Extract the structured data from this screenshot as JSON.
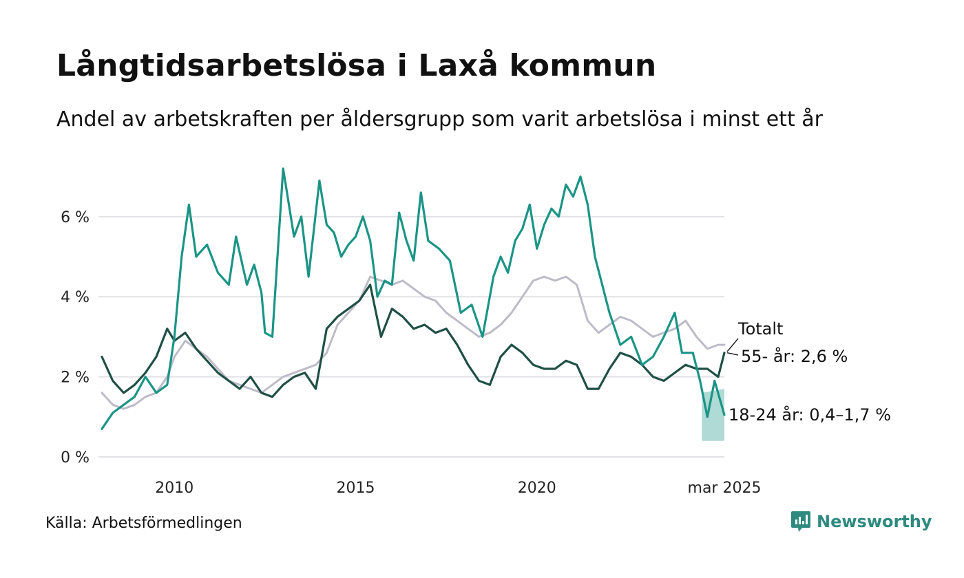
{
  "title": "Långtidsarbetslösa i Laxå kommun",
  "subtitle": "Andel av arbetskraften per åldersgrupp som varit arbetslösa i minst ett år",
  "source": "Källa: Arbetsförmedlingen",
  "brand": {
    "name": "Newsworthy",
    "icon": "newsworthy-logo-icon",
    "color": "#2e8a7f"
  },
  "chart_data": {
    "type": "line",
    "x_ticks": [
      {
        "x": 2010,
        "label": "2010"
      },
      {
        "x": 2015,
        "label": "2015"
      },
      {
        "x": 2020,
        "label": "2020"
      },
      {
        "x": 2025.17,
        "label": "mar 2025"
      }
    ],
    "y_ticks": [
      {
        "y": 0,
        "label": "0 %"
      },
      {
        "y": 2,
        "label": "2 %"
      },
      {
        "y": 4,
        "label": "4 %"
      },
      {
        "y": 6,
        "label": "6 %"
      }
    ],
    "xlim": [
      2008.0,
      2025.17
    ],
    "ylim": [
      0,
      7.2
    ],
    "grid": "horizontal",
    "series": [
      {
        "key": "total",
        "label": "Totalt",
        "color": "#bdbbc8",
        "x": [
          2008.0,
          2008.3,
          2008.6,
          2008.9,
          2009.2,
          2009.5,
          2009.8,
          2010.0,
          2010.3,
          2010.6,
          2010.9,
          2011.2,
          2011.5,
          2011.8,
          2012.1,
          2012.4,
          2012.7,
          2013.0,
          2013.3,
          2013.6,
          2013.9,
          2014.2,
          2014.5,
          2014.8,
          2015.1,
          2015.4,
          2015.7,
          2016.0,
          2016.3,
          2016.6,
          2016.9,
          2017.2,
          2017.5,
          2017.8,
          2018.1,
          2018.4,
          2018.7,
          2019.0,
          2019.3,
          2019.6,
          2019.9,
          2020.2,
          2020.5,
          2020.8,
          2021.1,
          2021.4,
          2021.7,
          2022.0,
          2022.3,
          2022.6,
          2022.9,
          2023.2,
          2023.5,
          2023.8,
          2024.1,
          2024.4,
          2024.7,
          2025.0,
          2025.17
        ],
        "values": [
          1.6,
          1.3,
          1.2,
          1.3,
          1.5,
          1.6,
          2.0,
          2.5,
          2.9,
          2.7,
          2.5,
          2.2,
          1.9,
          1.8,
          1.7,
          1.6,
          1.8,
          2.0,
          2.1,
          2.2,
          2.3,
          2.6,
          3.3,
          3.6,
          3.9,
          4.5,
          4.4,
          4.3,
          4.4,
          4.2,
          4.0,
          3.9,
          3.6,
          3.4,
          3.2,
          3.0,
          3.1,
          3.3,
          3.6,
          4.0,
          4.4,
          4.5,
          4.4,
          4.5,
          4.3,
          3.4,
          3.1,
          3.3,
          3.5,
          3.4,
          3.2,
          3.0,
          3.1,
          3.2,
          3.4,
          3.0,
          2.7,
          2.8,
          2.8
        ]
      },
      {
        "key": "age55",
        "label": "55- år: 2,6 %",
        "color": "#1f4f45",
        "x": [
          2008.0,
          2008.3,
          2008.6,
          2008.9,
          2009.2,
          2009.5,
          2009.8,
          2010.0,
          2010.3,
          2010.6,
          2010.9,
          2011.2,
          2011.5,
          2011.8,
          2012.1,
          2012.4,
          2012.7,
          2013.0,
          2013.3,
          2013.6,
          2013.9,
          2014.2,
          2014.5,
          2014.8,
          2015.1,
          2015.4,
          2015.7,
          2016.0,
          2016.3,
          2016.6,
          2016.9,
          2017.2,
          2017.5,
          2017.8,
          2018.1,
          2018.4,
          2018.7,
          2019.0,
          2019.3,
          2019.6,
          2019.9,
          2020.2,
          2020.5,
          2020.8,
          2021.1,
          2021.4,
          2021.7,
          2022.0,
          2022.3,
          2022.6,
          2022.9,
          2023.2,
          2023.5,
          2023.8,
          2024.1,
          2024.4,
          2024.7,
          2025.0,
          2025.17
        ],
        "values": [
          2.5,
          1.9,
          1.6,
          1.8,
          2.1,
          2.5,
          3.2,
          2.9,
          3.1,
          2.7,
          2.4,
          2.1,
          1.9,
          1.7,
          2.0,
          1.6,
          1.5,
          1.8,
          2.0,
          2.1,
          1.7,
          3.2,
          3.5,
          3.7,
          3.9,
          4.3,
          3.0,
          3.7,
          3.5,
          3.2,
          3.3,
          3.1,
          3.2,
          2.8,
          2.3,
          1.9,
          1.8,
          2.5,
          2.8,
          2.6,
          2.3,
          2.2,
          2.2,
          2.4,
          2.3,
          1.7,
          1.7,
          2.2,
          2.6,
          2.5,
          2.3,
          2.0,
          1.9,
          2.1,
          2.3,
          2.2,
          2.2,
          2.0,
          2.6
        ]
      },
      {
        "key": "age1824",
        "label": "18-24 år: 0,4–1,7 %",
        "color": "#1b9486",
        "x": [
          2008.0,
          2008.3,
          2008.6,
          2008.9,
          2009.2,
          2009.5,
          2009.8,
          2010.0,
          2010.2,
          2010.4,
          2010.6,
          2010.9,
          2011.2,
          2011.5,
          2011.7,
          2012.0,
          2012.2,
          2012.4,
          2012.5,
          2012.7,
          2013.0,
          2013.3,
          2013.5,
          2013.7,
          2014.0,
          2014.2,
          2014.4,
          2014.6,
          2014.8,
          2015.0,
          2015.2,
          2015.4,
          2015.6,
          2015.8,
          2016.0,
          2016.2,
          2016.4,
          2016.6,
          2016.8,
          2017.0,
          2017.3,
          2017.6,
          2017.9,
          2018.2,
          2018.5,
          2018.8,
          2019.0,
          2019.2,
          2019.4,
          2019.6,
          2019.8,
          2020.0,
          2020.2,
          2020.4,
          2020.6,
          2020.8,
          2021.0,
          2021.2,
          2021.4,
          2021.6,
          2021.8,
          2022.0,
          2022.3,
          2022.6,
          2022.9,
          2023.2,
          2023.5,
          2023.8,
          2024.0,
          2024.3,
          2024.5,
          2024.7,
          2024.9,
          2025.17
        ],
        "values": [
          0.7,
          1.1,
          1.3,
          1.5,
          2.0,
          1.6,
          1.8,
          3.0,
          5.0,
          6.3,
          5.0,
          5.3,
          4.6,
          4.3,
          5.5,
          4.3,
          4.8,
          4.1,
          3.1,
          3.0,
          7.2,
          5.5,
          6.0,
          4.5,
          6.9,
          5.8,
          5.6,
          5.0,
          5.3,
          5.5,
          6.0,
          5.4,
          4.0,
          4.4,
          4.3,
          6.1,
          5.4,
          4.9,
          6.6,
          5.4,
          5.2,
          4.9,
          3.6,
          3.8,
          3.0,
          4.5,
          5.0,
          4.6,
          5.4,
          5.7,
          6.3,
          5.2,
          5.8,
          6.2,
          6.0,
          6.8,
          6.5,
          7.0,
          6.3,
          5.0,
          4.3,
          3.6,
          2.8,
          3.0,
          2.3,
          2.5,
          3.0,
          3.6,
          2.6,
          2.6,
          1.9,
          1.0,
          1.9,
          1.05
        ],
        "band": {
          "x": [
            2024.55,
            2025.17
          ],
          "lower": [
            0.4,
            0.4
          ],
          "upper": [
            1.6,
            1.7
          ]
        }
      }
    ],
    "annotations": [
      {
        "text": "Totalt",
        "series": "total"
      },
      {
        "text": "55- år: 2,6 %",
        "series": "age55"
      },
      {
        "text": "18-24 år: 0,4–1,7 %",
        "series": "age1824"
      }
    ]
  }
}
